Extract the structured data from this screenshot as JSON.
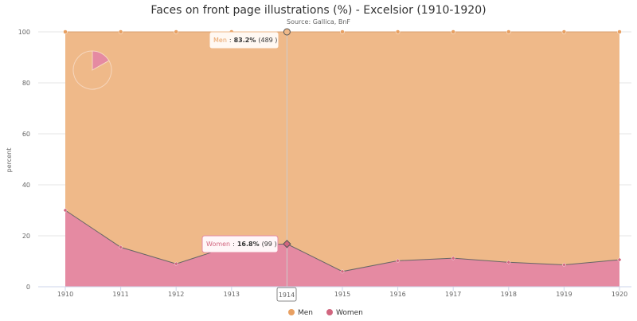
{
  "chart_data": {
    "type": "area",
    "title": "Faces on front page illustrations (%) - Excelsior (1910-1920)",
    "subtitle": "Source: Gallica, BnF",
    "ylabel": "percent",
    "xlabel": "",
    "ylim": [
      0,
      100
    ],
    "yticks": [
      0,
      20,
      40,
      60,
      80,
      100
    ],
    "categories": [
      "1910",
      "1911",
      "1912",
      "1913",
      "1914",
      "1915",
      "1916",
      "1917",
      "1918",
      "1919",
      "1920"
    ],
    "stacking": "percent",
    "grid": true,
    "legend_position": "bottom-center",
    "series": [
      {
        "name": "Men",
        "color": "#efb989",
        "marker_color": "#e8a062",
        "values": [
          70.0,
          84.5,
          91.0,
          84.0,
          83.2,
          94.0,
          89.8,
          88.8,
          90.4,
          91.4,
          89.4
        ]
      },
      {
        "name": "Women",
        "color": "#e58aa2",
        "marker_color": "#d1667f",
        "values": [
          30.0,
          15.5,
          9.0,
          16.0,
          16.8,
          6.0,
          10.2,
          11.2,
          9.6,
          8.6,
          10.6
        ]
      }
    ],
    "tooltips": {
      "men": {
        "name": "Men",
        "value": "83.2%",
        "count": "(489 )"
      },
      "women": {
        "name": "Women",
        "value": "16.8%",
        "count": "(99 )"
      },
      "category": "1914"
    },
    "inset_pie": {
      "slices": [
        {
          "name": "Men",
          "value": 83.2,
          "color": "#efb989"
        },
        {
          "name": "Women",
          "value": 16.8,
          "color": "#e58aa2"
        }
      ]
    }
  }
}
